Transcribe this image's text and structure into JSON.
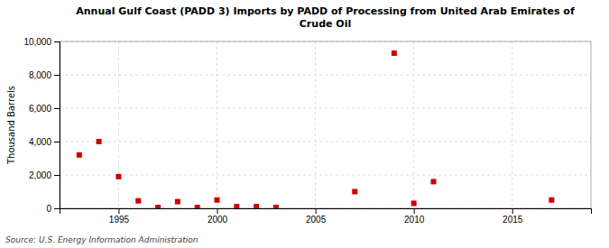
{
  "chart_data": {
    "type": "scatter",
    "title": "Annual Gulf Coast (PADD 3) Imports by PADD of Processing from United Arab Emirates of\nCrude Oil",
    "ylabel": "Thousand Barrels",
    "source": "Source: U.S. Energy Information Administration",
    "x": [
      1993,
      1994,
      1995,
      1996,
      1997,
      1998,
      1999,
      2000,
      2001,
      2002,
      2003,
      2007,
      2009,
      2010,
      2011,
      2017
    ],
    "values": [
      3200,
      4000,
      1900,
      450,
      50,
      400,
      50,
      500,
      100,
      100,
      50,
      1000,
      9300,
      300,
      1600,
      500
    ],
    "color": "#cc0000",
    "marker": "square",
    "xlim": [
      1992,
      2019
    ],
    "ylim": [
      0,
      10000
    ],
    "xticks": [
      1995,
      2000,
      2005,
      2010,
      2015
    ],
    "yticks": [
      0,
      {
        "value": 2000,
        "label": "2,000"
      },
      {
        "value": 4000,
        "label": "4,000"
      },
      {
        "value": 6000,
        "label": "6,000"
      },
      {
        "value": 8000,
        "label": "8,000"
      },
      {
        "value": 10000,
        "label": "10,000"
      }
    ],
    "grid": true
  }
}
